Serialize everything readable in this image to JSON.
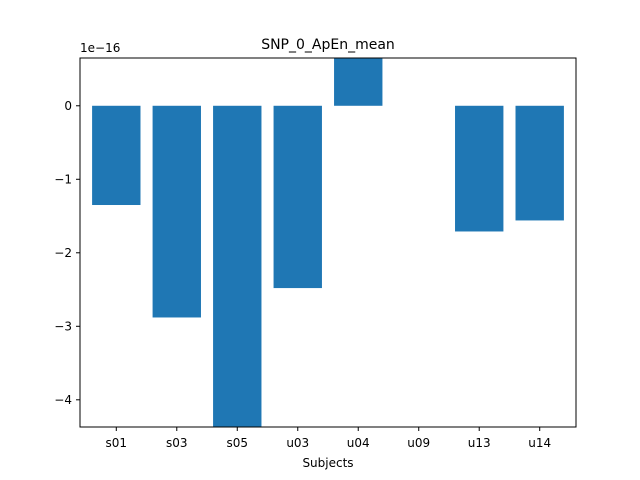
{
  "chart_data": {
    "type": "bar",
    "title": "SNP_0_ApEn_mean",
    "xlabel": "Subjects",
    "ylabel": "",
    "scale_label": "1e−16",
    "categories": [
      "s01",
      "s03",
      "s05",
      "u03",
      "u04",
      "u09",
      "u13",
      "u14"
    ],
    "values": [
      -1.35,
      -2.88,
      -4.5,
      -2.48,
      0.65,
      0.0,
      -1.71,
      -1.56
    ],
    "value_scale": 1e-16,
    "ylim": [
      -4.37,
      0.65
    ],
    "yticks": [
      0,
      -1,
      -2,
      -3,
      -4
    ],
    "ytick_labels": [
      "0",
      "−1",
      "−2",
      "−3",
      "−4"
    ],
    "grid": false,
    "legend": "none",
    "bar_color": "#1f77b4"
  }
}
